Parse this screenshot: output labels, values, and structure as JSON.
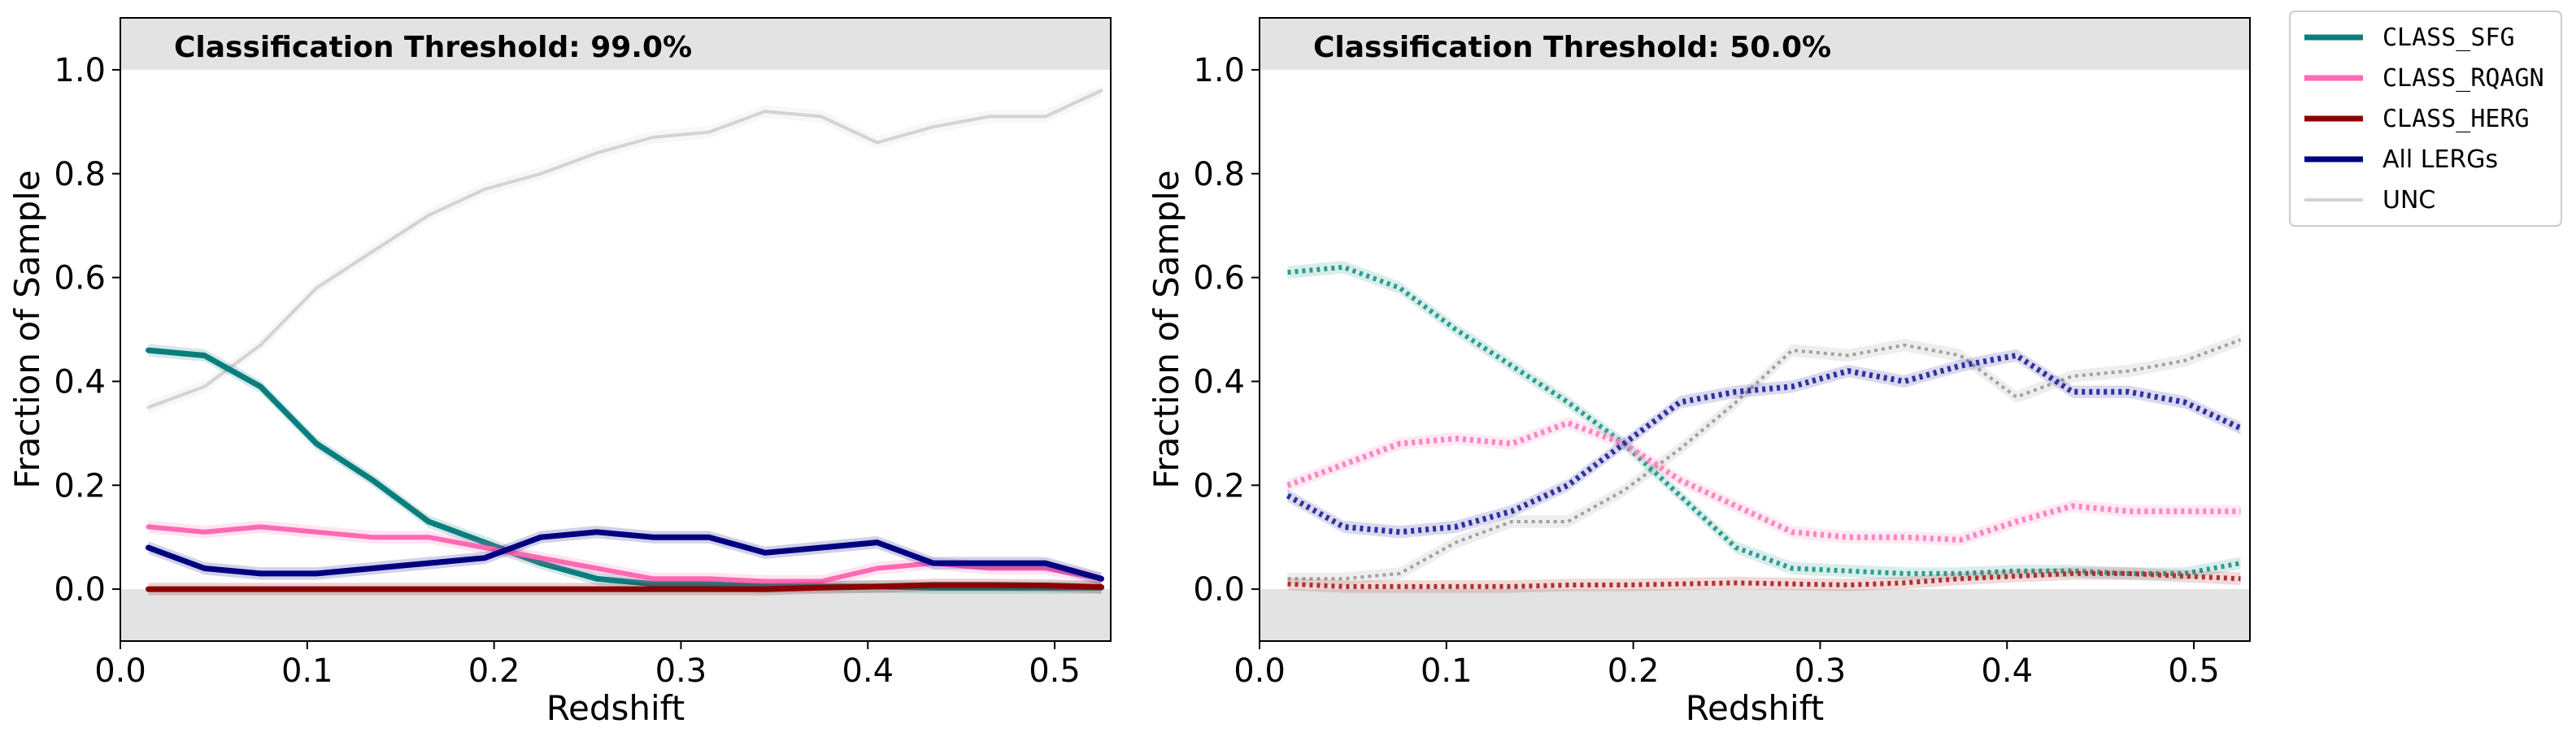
{
  "chart_data": [
    {
      "type": "line",
      "panel": "left",
      "title": "Classification Threshold: 99.0%",
      "xlabel": "Redshift",
      "ylabel": "Fraction of Sample",
      "xlim": [
        0.0,
        0.53
      ],
      "ylim": [
        -0.1,
        1.1
      ],
      "xticks": [
        "0.0",
        "0.1",
        "0.2",
        "0.3",
        "0.4",
        "0.5"
      ],
      "yticks": [
        "0.0",
        "0.2",
        "0.4",
        "0.6",
        "0.8",
        "1.0"
      ],
      "shaded_regions": [
        [
          -0.1,
          0.0
        ],
        [
          1.0,
          1.1
        ]
      ],
      "x": [
        0.015,
        0.045,
        0.075,
        0.105,
        0.135,
        0.165,
        0.195,
        0.225,
        0.255,
        0.285,
        0.315,
        0.345,
        0.375,
        0.405,
        0.435,
        0.465,
        0.495,
        0.525
      ],
      "series": [
        {
          "name": "UNC",
          "color": "#d3d3d3",
          "style": "solid",
          "width": 4,
          "values": [
            0.35,
            0.39,
            0.47,
            0.58,
            0.65,
            0.72,
            0.77,
            0.8,
            0.84,
            0.87,
            0.88,
            0.92,
            0.91,
            0.86,
            0.89,
            0.91,
            0.91,
            0.96
          ]
        },
        {
          "name": "CLASS_SFG",
          "color": "#0a7d7d",
          "style": "solid",
          "width": 7,
          "values": [
            0.46,
            0.45,
            0.39,
            0.28,
            0.21,
            0.13,
            0.09,
            0.05,
            0.02,
            0.01,
            0.01,
            0.005,
            0.005,
            0.005,
            0.003,
            0.003,
            0.003,
            0.003
          ]
        },
        {
          "name": "CLASS_RQAGN",
          "color": "#ff69b4",
          "style": "solid",
          "width": 6,
          "values": [
            0.12,
            0.11,
            0.12,
            0.11,
            0.1,
            0.1,
            0.08,
            0.06,
            0.04,
            0.02,
            0.02,
            0.015,
            0.015,
            0.04,
            0.05,
            0.04,
            0.04,
            0.02
          ]
        },
        {
          "name": "All LERGs",
          "color": "#000080",
          "style": "solid",
          "width": 7,
          "values": [
            0.08,
            0.04,
            0.03,
            0.03,
            0.04,
            0.05,
            0.06,
            0.1,
            0.11,
            0.1,
            0.1,
            0.07,
            0.08,
            0.09,
            0.05,
            0.05,
            0.05,
            0.02
          ]
        },
        {
          "name": "CLASS_HERG",
          "color": "#8b0000",
          "style": "solid",
          "width": 7,
          "values": [
            0.0,
            0.0,
            0.0,
            0.0,
            0.0,
            0.0,
            0.0,
            0.0,
            0.0,
            0.0,
            0.0,
            0.0,
            0.003,
            0.005,
            0.008,
            0.008,
            0.007,
            0.004
          ]
        }
      ]
    },
    {
      "type": "line",
      "panel": "right",
      "title": "Classification Threshold: 50.0%",
      "xlabel": "Redshift",
      "ylabel": "Fraction of Sample",
      "xlim": [
        0.0,
        0.53
      ],
      "ylim": [
        -0.1,
        1.1
      ],
      "xticks": [
        "0.0",
        "0.1",
        "0.2",
        "0.3",
        "0.4",
        "0.5"
      ],
      "yticks": [
        "0.0",
        "0.2",
        "0.4",
        "0.6",
        "0.8",
        "1.0"
      ],
      "shaded_regions": [
        [
          -0.1,
          0.0
        ],
        [
          1.0,
          1.1
        ]
      ],
      "x": [
        0.015,
        0.045,
        0.075,
        0.105,
        0.135,
        0.165,
        0.195,
        0.225,
        0.255,
        0.285,
        0.315,
        0.345,
        0.375,
        0.405,
        0.435,
        0.465,
        0.495,
        0.525
      ],
      "series": [
        {
          "name": "UNC",
          "color": "#a0a0a0",
          "style": "dotted",
          "width": 4,
          "values": [
            0.02,
            0.02,
            0.03,
            0.09,
            0.13,
            0.13,
            0.19,
            0.27,
            0.36,
            0.46,
            0.45,
            0.47,
            0.45,
            0.37,
            0.41,
            0.42,
            0.44,
            0.48
          ]
        },
        {
          "name": "CLASS_SFG",
          "color": "#2a9d8f",
          "style": "dotted",
          "width": 6,
          "values": [
            0.61,
            0.62,
            0.58,
            0.5,
            0.43,
            0.36,
            0.28,
            0.18,
            0.08,
            0.04,
            0.035,
            0.03,
            0.03,
            0.035,
            0.035,
            0.03,
            0.03,
            0.05
          ]
        },
        {
          "name": "CLASS_RQAGN",
          "color": "#ff85c0",
          "style": "dotted",
          "width": 7,
          "values": [
            0.2,
            0.24,
            0.28,
            0.29,
            0.28,
            0.32,
            0.28,
            0.21,
            0.16,
            0.11,
            0.1,
            0.1,
            0.095,
            0.13,
            0.16,
            0.15,
            0.15,
            0.15
          ]
        },
        {
          "name": "All LERGs",
          "color": "#3030a0",
          "style": "dotted",
          "width": 7,
          "values": [
            0.18,
            0.12,
            0.11,
            0.12,
            0.15,
            0.2,
            0.28,
            0.36,
            0.38,
            0.39,
            0.42,
            0.4,
            0.43,
            0.45,
            0.38,
            0.38,
            0.36,
            0.31
          ]
        },
        {
          "name": "CLASS_HERG",
          "color": "#b03030",
          "style": "dotted",
          "width": 6,
          "values": [
            0.01,
            0.005,
            0.005,
            0.005,
            0.005,
            0.008,
            0.008,
            0.01,
            0.012,
            0.01,
            0.008,
            0.012,
            0.02,
            0.025,
            0.03,
            0.03,
            0.025,
            0.02
          ]
        }
      ]
    }
  ],
  "legend": {
    "position": "upper-right outside",
    "entries": [
      {
        "label": "CLASS_SFG",
        "color": "#0a7d7d",
        "mono": true
      },
      {
        "label": "CLASS_RQAGN",
        "color": "#ff69b4",
        "mono": true
      },
      {
        "label": "CLASS_HERG",
        "color": "#8b0000",
        "mono": true
      },
      {
        "label": "All LERGs",
        "color": "#000080",
        "mono": false
      },
      {
        "label": "UNC",
        "color": "#d3d3d3",
        "mono": false
      }
    ]
  }
}
